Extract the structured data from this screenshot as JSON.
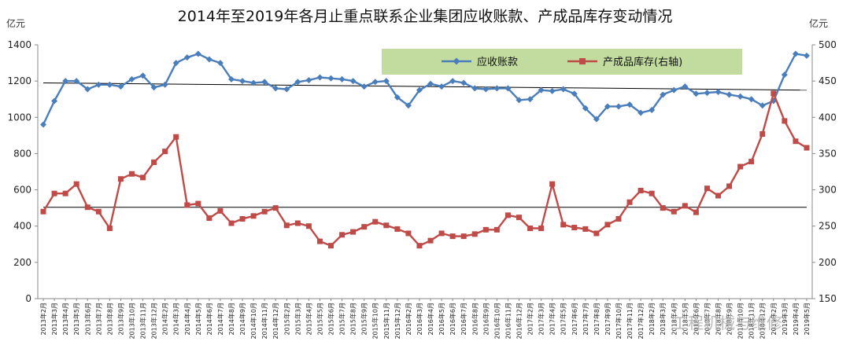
{
  "chart_data": {
    "type": "line",
    "title": "2014年至2019年各月止重点联系企业集团应收账款、产成品库存变动情况",
    "ylabel_left": "亿元",
    "ylabel_right": "亿元",
    "ylim_left": [
      0,
      1400
    ],
    "ylim_right": [
      150,
      500
    ],
    "yticks_left": [
      0,
      200,
      400,
      600,
      800,
      1000,
      1200,
      1400
    ],
    "yticks_right": [
      150,
      200,
      250,
      300,
      350,
      400,
      450,
      500
    ],
    "legend_position": "top-center",
    "grid": false,
    "x": [
      "2013年2月",
      "2013年3月",
      "2013年4月",
      "2013年5月",
      "2013年6月",
      "2013年7月",
      "2013年8月",
      "2013年9月",
      "2013年10月",
      "2013年11月",
      "2013年12月",
      "2014年2月",
      "2014年3月",
      "2014年4月",
      "2014年5月",
      "2014年6月",
      "2014年7月",
      "2014年8月",
      "2014年9月",
      "2014年10月",
      "2014年11月",
      "2014年12月",
      "2015年2月",
      "2015年3月",
      "2015年4月",
      "2015年5月",
      "2015年6月",
      "2015年7月",
      "2015年8月",
      "2015年9月",
      "2015年10月",
      "2015年11月",
      "2015年12月",
      "2016年2月",
      "2016年3月",
      "2016年4月",
      "2016年5月",
      "2016年6月",
      "2016年7月",
      "2016年8月",
      "2016年9月",
      "2016年10月",
      "2016年11月",
      "2016年12月",
      "2017年2月",
      "2017年3月",
      "2017年4月",
      "2017年5月",
      "2017年6月",
      "2017年7月",
      "2017年8月",
      "2017年9月",
      "2017年10月",
      "2017年11月",
      "2017年12月",
      "2018年2月",
      "2018年3月",
      "2018年4月",
      "2018年5月",
      "2018年6月",
      "2018年7月",
      "2018年8月",
      "2018年9月",
      "2018年10月",
      "2018年11月",
      "2018年12月",
      "2019年2月",
      "2019年3月",
      "2019年4月",
      "2019年5月"
    ],
    "series": [
      {
        "name": "应收账款",
        "axis": "left",
        "color": "#4a7ebb",
        "marker": "diamond",
        "values": [
          960,
          1090,
          1200,
          1200,
          1155,
          1180,
          1180,
          1170,
          1210,
          1230,
          1165,
          1180,
          1300,
          1330,
          1350,
          1320,
          1300,
          1210,
          1200,
          1190,
          1195,
          1160,
          1155,
          1195,
          1205,
          1220,
          1215,
          1210,
          1200,
          1170,
          1195,
          1200,
          1110,
          1065,
          1150,
          1185,
          1170,
          1200,
          1190,
          1160,
          1155,
          1160,
          1160,
          1095,
          1100,
          1150,
          1145,
          1155,
          1130,
          1050,
          990,
          1060,
          1060,
          1070,
          1025,
          1040,
          1125,
          1150,
          1170,
          1130,
          1135,
          1140,
          1125,
          1115,
          1100,
          1065,
          1090,
          1235,
          1350,
          1340
        ]
      },
      {
        "name": "产成品库存(右轴)",
        "axis": "right",
        "color": "#be4b48",
        "marker": "square",
        "values": [
          270,
          295,
          295,
          308,
          276,
          270,
          247,
          315,
          322,
          317,
          338,
          353,
          373,
          279,
          281,
          261,
          271,
          254,
          260,
          264,
          270,
          275,
          251,
          254,
          250,
          229,
          223,
          238,
          242,
          249,
          256,
          251,
          246,
          240,
          223,
          230,
          240,
          236,
          236,
          239,
          245,
          245,
          265,
          262,
          247,
          247,
          308,
          252,
          248,
          246,
          240,
          252,
          260,
          283,
          299,
          295,
          275,
          270,
          278,
          269,
          302,
          292,
          305,
          332,
          339,
          377,
          433,
          395,
          367,
          358
        ]
      }
    ],
    "trendlines": [
      {
        "axis": "left",
        "start": 1190,
        "end": 1150,
        "color": "#000000"
      },
      {
        "axis": "right",
        "start": 276,
        "end": 276,
        "color": "#000000"
      }
    ]
  },
  "legend_bg": "#c2dca0",
  "watermark": "工程机械与维修"
}
